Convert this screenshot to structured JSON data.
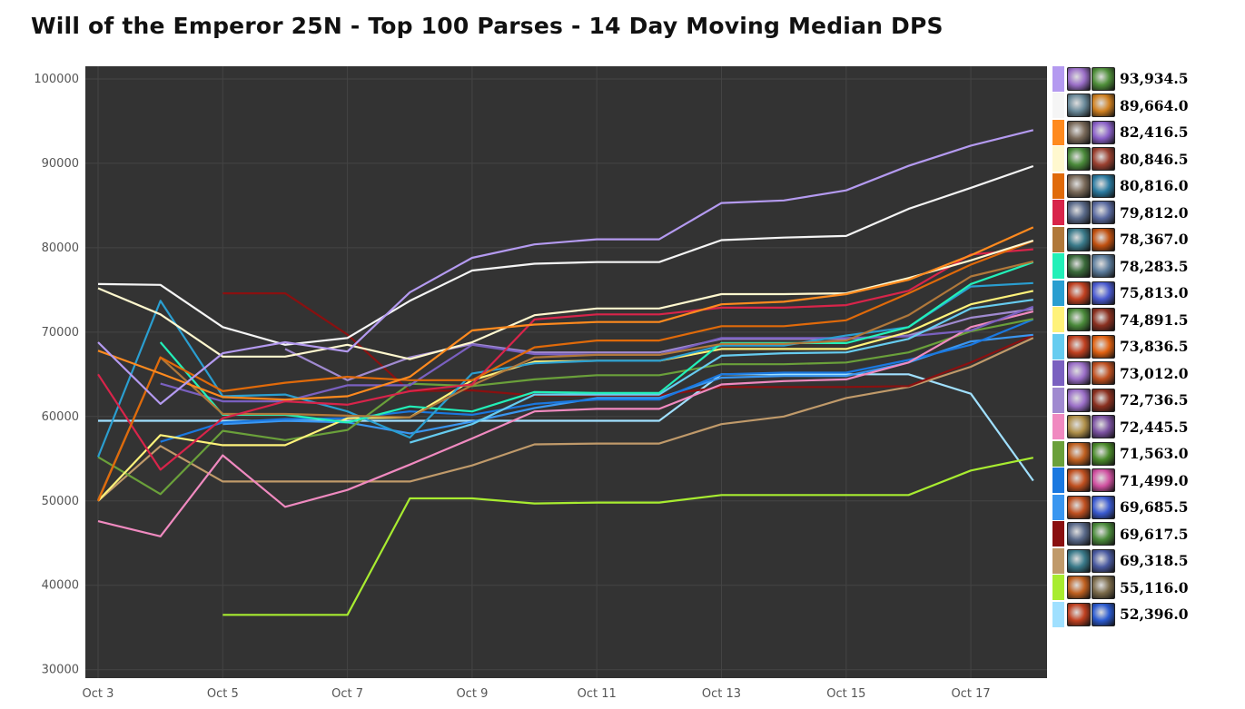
{
  "chart_data": {
    "type": "line",
    "title": "Will of the Emperor 25N - Top 100 Parses - 14 Day Moving Median DPS",
    "xlabel": "",
    "ylabel": "",
    "ylim": [
      29000,
      101500
    ],
    "y_ticks": [
      30000,
      40000,
      50000,
      60000,
      70000,
      80000,
      90000,
      100000
    ],
    "y_tick_labels": [
      "30000",
      "40000",
      "50000",
      "60000",
      "70000",
      "80000",
      "90000",
      "100000"
    ],
    "x_tick_labels": [
      "Oct 3",
      "Oct 5",
      "Oct 7",
      "Oct 9",
      "Oct 11",
      "Oct 13",
      "Oct 15",
      "Oct 17"
    ],
    "x_days": [
      3,
      4,
      5,
      6,
      7,
      8,
      9,
      10,
      11,
      12,
      13,
      14,
      15,
      16,
      17,
      18
    ],
    "grid": true,
    "background": "#333333",
    "legend_position": "right",
    "series": [
      {
        "legend_value": "93,934.5",
        "color": "#b49af0",
        "icons": [
          "#9b6fc8",
          "#4f8f3a"
        ],
        "values": [
          68800,
          61500,
          67500,
          68800,
          67700,
          74700,
          78800,
          80400,
          81000,
          81000,
          85300,
          85600,
          86800,
          89700,
          92100,
          93934.5
        ]
      },
      {
        "legend_value": "89,664.0",
        "color": "#f5f5f5",
        "icons": [
          "#6a8a9a",
          "#d08020"
        ],
        "values": [
          75700,
          75600,
          70600,
          68500,
          69300,
          73700,
          77300,
          78100,
          78300,
          78300,
          80900,
          81200,
          81400,
          84600,
          87100,
          89664
        ]
      },
      {
        "legend_value": "82,416.5",
        "color": "#ff8a1e",
        "icons": [
          "#7a6a5a",
          "#8a60c8"
        ],
        "values": [
          67800,
          65100,
          62300,
          62000,
          62400,
          64700,
          70200,
          70900,
          71200,
          71200,
          73300,
          73600,
          74500,
          76200,
          79100,
          82416.5
        ]
      },
      {
        "legend_value": "80,846.5",
        "color": "#fff8cf",
        "icons": [
          "#4a8a3a",
          "#9a4030"
        ],
        "values": [
          75200,
          72100,
          67100,
          67100,
          68500,
          66800,
          68800,
          72000,
          72800,
          72800,
          74500,
          74500,
          74600,
          76400,
          78500,
          80846.5
        ]
      },
      {
        "legend_value": "80,816.0",
        "color": "#e06a0a",
        "icons": [
          "#7a6a5a",
          "#2a7aa0"
        ],
        "values": [
          50000,
          67000,
          63000,
          64000,
          64700,
          64300,
          64300,
          68200,
          69000,
          69000,
          70700,
          70700,
          71400,
          74600,
          78000,
          80816
        ]
      },
      {
        "legend_value": "79,812.0",
        "color": "#d8244a",
        "icons": [
          "#5a6a8a",
          "#5a6aa0"
        ],
        "values": [
          65000,
          53700,
          59800,
          61800,
          61400,
          63000,
          63800,
          71500,
          72100,
          72100,
          72900,
          72900,
          73200,
          74900,
          79200,
          79812
        ]
      },
      {
        "legend_value": "78,367.0",
        "color": "#b0783a",
        "icons": [
          "#3a7a8a",
          "#c05010"
        ],
        "values": [
          50100,
          67000,
          60300,
          60300,
          60100,
          59900,
          63700,
          67000,
          67300,
          67300,
          68600,
          68600,
          69000,
          72000,
          76600,
          78367
        ]
      },
      {
        "legend_value": "78,283.5",
        "color": "#22f0b8",
        "icons": [
          "#3a6a3a",
          "#5a7a9a"
        ],
        "values": [
          null,
          68800,
          60200,
          60200,
          59300,
          61200,
          60600,
          62900,
          62800,
          62800,
          68700,
          68700,
          68700,
          70600,
          75700,
          78283.5
        ]
      },
      {
        "legend_value": "75,813.0",
        "color": "#2a9ed0",
        "icons": [
          "#c04020",
          "#4a5ad0"
        ],
        "values": [
          55200,
          73700,
          62400,
          62600,
          60600,
          57500,
          65100,
          66300,
          66600,
          66600,
          68400,
          68400,
          69600,
          70600,
          75400,
          75813
        ]
      },
      {
        "legend_value": "74,891.5",
        "color": "#fff27a",
        "icons": [
          "#4a8a3a",
          "#8a3020"
        ],
        "values": [
          50000,
          57800,
          56600,
          56600,
          59800,
          59900,
          64300,
          66500,
          66600,
          66600,
          68000,
          68000,
          68000,
          70000,
          73300,
          74891.5
        ]
      },
      {
        "legend_value": "73,836.5",
        "color": "#66ccf0",
        "icons": [
          "#c04020",
          "#e06010"
        ],
        "values": [
          null,
          null,
          null,
          null,
          null,
          56900,
          59100,
          62600,
          62600,
          62600,
          67200,
          67500,
          67600,
          69200,
          72800,
          73836.5
        ]
      },
      {
        "legend_value": "73,012.0",
        "color": "#7a60c0",
        "icons": [
          "#9b6fc8",
          "#c05020"
        ],
        "values": [
          null,
          63900,
          61800,
          61800,
          63700,
          63700,
          68500,
          67400,
          67300,
          67300,
          69300,
          69300,
          69300,
          69500,
          70200,
          73012
        ]
      },
      {
        "legend_value": "72,736.5",
        "color": "#a08ad0",
        "icons": [
          "#9b6fc8",
          "#8a3020"
        ],
        "values": [
          null,
          null,
          null,
          68000,
          64300,
          67000,
          68600,
          67600,
          67600,
          67600,
          69200,
          69200,
          69200,
          69600,
          71700,
          72736.5
        ]
      },
      {
        "legend_value": "72,445.5",
        "color": "#f08ac0",
        "icons": [
          "#b0904a",
          "#7a50a0"
        ],
        "values": [
          47600,
          45800,
          55400,
          49300,
          51300,
          54300,
          57400,
          60600,
          60900,
          60900,
          63800,
          64200,
          64400,
          66400,
          70600,
          72445.5
        ]
      },
      {
        "legend_value": "71,563.0",
        "color": "#6aa03a",
        "icons": [
          "#c06020",
          "#4a8a2a"
        ],
        "values": [
          55200,
          50800,
          58300,
          57200,
          58400,
          63900,
          63600,
          64400,
          64900,
          64900,
          66200,
          66200,
          66400,
          67600,
          70100,
          71563
        ]
      },
      {
        "legend_value": "71,499.0",
        "color": "#1a78e0",
        "icons": [
          "#c05020",
          "#d050a0"
        ],
        "values": [
          null,
          57000,
          59300,
          59700,
          59800,
          60600,
          60200,
          61500,
          62000,
          62000,
          65000,
          65200,
          65200,
          66700,
          68500,
          71499
        ]
      },
      {
        "legend_value": "69,685.5",
        "color": "#3a96f0",
        "icons": [
          "#c05020",
          "#3a5ad0"
        ],
        "values": [
          null,
          null,
          59100,
          59500,
          59300,
          58000,
          59400,
          61000,
          62200,
          62200,
          64600,
          64800,
          64800,
          66400,
          68900,
          69685.5
        ]
      },
      {
        "legend_value": "69,617.5",
        "color": "#8a1010",
        "icons": [
          "#5a6a8a",
          "#4a8a3a"
        ],
        "values": [
          null,
          null,
          74600,
          74600,
          69700,
          63000,
          63100,
          62500,
          62500,
          62500,
          63500,
          63500,
          63500,
          63600,
          66400,
          69617.5
        ]
      },
      {
        "legend_value": "69,318.5",
        "color": "#c09a6a",
        "icons": [
          "#3a7a8a",
          "#4a5aa0"
        ],
        "values": [
          50000,
          56500,
          52300,
          52300,
          52300,
          52300,
          54200,
          56700,
          56800,
          56800,
          59100,
          60000,
          62200,
          63500,
          65900,
          69318.5
        ]
      },
      {
        "legend_value": "55,116.0",
        "color": "#a8ec30",
        "icons": [
          "#c06020",
          "#7a6a4a"
        ],
        "values": [
          null,
          null,
          36500,
          36500,
          36500,
          50300,
          50300,
          49700,
          49800,
          49800,
          50700,
          50700,
          50700,
          50700,
          53600,
          55116
        ]
      },
      {
        "legend_value": "52,396.0",
        "color": "#a0e0ff",
        "icons": [
          "#c04020",
          "#2a5ad0"
        ],
        "values": [
          59500,
          59500,
          59500,
          59500,
          59500,
          59500,
          59500,
          59500,
          59500,
          59500,
          65000,
          65000,
          65000,
          65000,
          62700,
          52396
        ]
      }
    ]
  }
}
